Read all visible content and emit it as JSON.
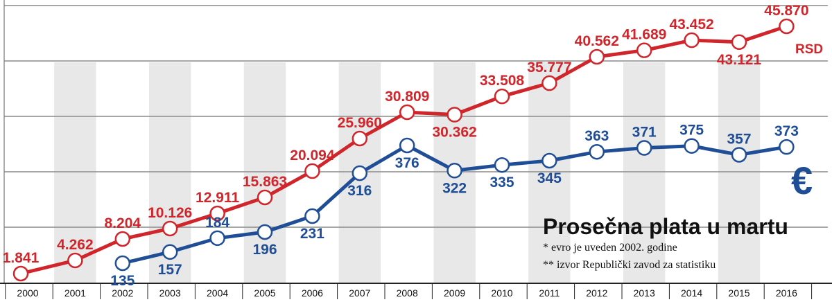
{
  "chart_data": {
    "type": "line",
    "title": "Prosečna plata u martu",
    "notes": [
      "* evro je uveden 2002. godine",
      "** izvor Republički zavod za statistiku"
    ],
    "x": [
      "2000",
      "2001",
      "2002",
      "2003",
      "2004",
      "2005",
      "2006",
      "2007",
      "2008",
      "2009",
      "2010",
      "2011",
      "2012",
      "2013",
      "2014",
      "2015",
      "2016"
    ],
    "series": [
      {
        "name": "RSD",
        "color": "#d0262b",
        "values": [
          1841,
          4262,
          8204,
          10126,
          12911,
          15863,
          20094,
          25960,
          30809,
          30362,
          33508,
          35777,
          40562,
          41689,
          43452,
          43121,
          45870
        ],
        "labels": [
          "1.841",
          "4.262",
          "8.204",
          "10.126",
          "12.911",
          "15.863",
          "20.094",
          "25.960",
          "30.809",
          "30.362",
          "33.508",
          "35.777",
          "40.562",
          "41.689",
          "43.452",
          "43.121",
          "45.870"
        ]
      },
      {
        "name": "€",
        "color": "#1f4e96",
        "values": [
          null,
          null,
          135,
          157,
          184,
          196,
          231,
          316,
          376,
          322,
          335,
          345,
          363,
          371,
          375,
          357,
          373
        ],
        "labels": [
          null,
          null,
          "135",
          "157",
          "184",
          "196",
          "231",
          "316",
          "376",
          "322",
          "335",
          "345",
          "363",
          "371",
          "375",
          "357",
          "373"
        ]
      }
    ],
    "grid": true
  }
}
